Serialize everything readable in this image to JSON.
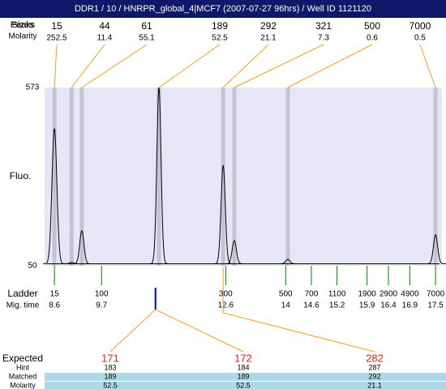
{
  "title": "DDR1 / 10 / HNRPR_global_4|MCF7 (2007-07-27 96hrs) / Well ID 1121120",
  "chart_data": {
    "type": "line",
    "y_label": "Fluo.",
    "ylim": [
      50,
      573
    ],
    "yticks": [
      50,
      573
    ],
    "xlim": [
      8.37,
      17.65
    ],
    "baseline": 56,
    "color": "#000000",
    "band_color": "#c4c4d0",
    "background": "#e6e6f6",
    "link_color": "#f0a020",
    "peaks": {
      "label_peaks": "Peaks",
      "label_sizes": "Sizes",
      "label_molarity": "Molarity",
      "sizes": [
        15,
        44,
        61,
        189,
        292,
        321,
        500,
        7000
      ],
      "molarity": [
        252.5,
        11.4,
        55.1,
        52.5,
        21.1,
        7.3,
        0.6,
        0.5
      ],
      "time": [
        8.6,
        9.0,
        9.24,
        11.04,
        12.54,
        12.8,
        14.05,
        17.5
      ],
      "height": [
        453,
        60,
        153,
        573,
        345,
        124,
        69,
        141
      ]
    },
    "ladder": {
      "label": "Ladder",
      "time_label": "Mig. time",
      "color": "#008000",
      "sizes": [
        15,
        100,
        300,
        500,
        700,
        1100,
        1900,
        2900,
        4900,
        7000
      ],
      "times": [
        8.6,
        9.7,
        12.6,
        14,
        14.6,
        15.2,
        15.9,
        16.4,
        16.9,
        17.5
      ]
    },
    "marker_time": 10.96,
    "marker_color": "#0000c0"
  },
  "expected": {
    "label": "Expected",
    "hint_label": "Hint",
    "matched_label": "Matched",
    "molarity_label": "Molarity",
    "values": [
      171,
      172,
      282
    ],
    "hint": [
      183,
      184,
      287
    ],
    "matched": [
      189,
      189,
      292
    ],
    "molarity": [
      52.5,
      52.5,
      21.1
    ],
    "value_color": "#e02020",
    "row_color": "#add8e6"
  }
}
